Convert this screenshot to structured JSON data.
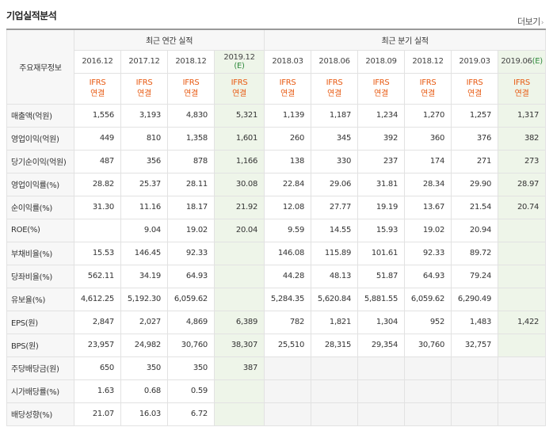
{
  "section": {
    "title": "기업실적분석",
    "more_label": "더보기",
    "more_arrow": "›"
  },
  "header": {
    "row_label": "주요재무정보",
    "annual_label": "최근 연간 실적",
    "quarter_label": "최근 분기 실적",
    "periods": [
      "2016.12",
      "2017.12",
      "2018.12",
      "2019.12",
      "2018.03",
      "2018.06",
      "2018.09",
      "2018.12",
      "2019.03",
      "2019.06"
    ],
    "estimate_mark": "(E)",
    "ifrs_top": "IFRS",
    "ifrs_bottom": "연결"
  },
  "rows": [
    {
      "label": "매출액(억원)",
      "values": [
        "1,556",
        "3,193",
        "4,830",
        "5,321",
        "1,139",
        "1,187",
        "1,234",
        "1,270",
        "1,257",
        "1,317"
      ]
    },
    {
      "label": "영업이익(억원)",
      "values": [
        "449",
        "810",
        "1,358",
        "1,601",
        "260",
        "345",
        "392",
        "360",
        "376",
        "382"
      ]
    },
    {
      "label": "당기순이익(억원)",
      "values": [
        "487",
        "356",
        "878",
        "1,166",
        "138",
        "330",
        "237",
        "174",
        "271",
        "273"
      ]
    },
    {
      "label": "영업이익률(%)",
      "values": [
        "28.82",
        "25.37",
        "28.11",
        "30.08",
        "22.84",
        "29.06",
        "31.81",
        "28.34",
        "29.90",
        "28.97"
      ]
    },
    {
      "label": "순이익률(%)",
      "values": [
        "31.30",
        "11.16",
        "18.17",
        "21.92",
        "12.08",
        "27.77",
        "19.19",
        "13.67",
        "21.54",
        "20.74"
      ]
    },
    {
      "label": "ROE(%)",
      "values": [
        "",
        "9.04",
        "19.02",
        "20.04",
        "9.59",
        "14.55",
        "15.93",
        "19.02",
        "20.94",
        ""
      ]
    },
    {
      "label": "부채비율(%)",
      "values": [
        "15.53",
        "146.45",
        "92.33",
        "",
        "146.08",
        "115.89",
        "101.61",
        "92.33",
        "89.72",
        ""
      ]
    },
    {
      "label": "당좌비율(%)",
      "values": [
        "562.11",
        "34.19",
        "64.93",
        "",
        "44.28",
        "48.13",
        "51.87",
        "64.93",
        "79.24",
        ""
      ]
    },
    {
      "label": "유보율(%)",
      "values": [
        "4,612.25",
        "5,192.30",
        "6,059.62",
        "",
        "5,284.35",
        "5,620.84",
        "5,881.55",
        "6,059.62",
        "6,290.49",
        ""
      ]
    },
    {
      "label": "EPS(원)",
      "values": [
        "2,847",
        "2,027",
        "4,869",
        "6,389",
        "782",
        "1,821",
        "1,304",
        "952",
        "1,483",
        "1,422"
      ]
    },
    {
      "label": "BPS(원)",
      "values": [
        "23,957",
        "24,982",
        "30,760",
        "38,307",
        "25,510",
        "28,315",
        "29,354",
        "30,760",
        "32,757",
        ""
      ]
    },
    {
      "label": "주당배당금(원)",
      "values": [
        "650",
        "350",
        "350",
        "387",
        "",
        "",
        "",
        "",
        "",
        ""
      ]
    },
    {
      "label": "시가배당률(%)",
      "values": [
        "1.63",
        "0.68",
        "0.59",
        "",
        "",
        "",
        "",
        "",
        "",
        ""
      ]
    },
    {
      "label": "배당성향(%)",
      "values": [
        "21.07",
        "16.03",
        "6.72",
        "",
        "",
        "",
        "",
        "",
        "",
        ""
      ]
    }
  ],
  "colors": {
    "ifrs": "#e85a12",
    "estimate_bg": "#eef5e9",
    "estimate_text": "#2f8a3c"
  }
}
